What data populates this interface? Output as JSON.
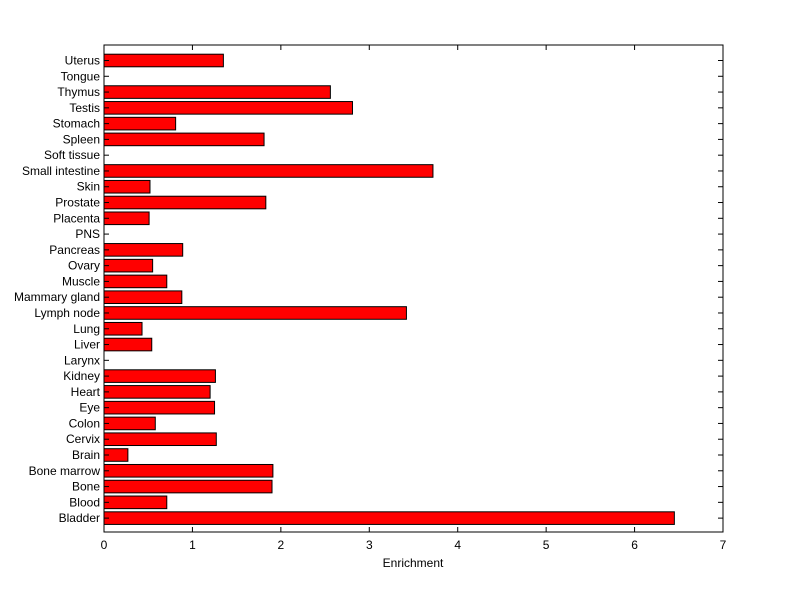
{
  "chart_data": {
    "type": "bar",
    "orientation": "horizontal",
    "title": "",
    "xlabel": "Enrichment",
    "ylabel": "",
    "xlim": [
      0,
      7
    ],
    "xticks": [
      0,
      1,
      2,
      3,
      4,
      5,
      6,
      7
    ],
    "grid": false,
    "bar_color": "#ff0000",
    "bar_edge_color": "#000000",
    "categories": [
      "Uterus",
      "Tongue",
      "Thymus",
      "Testis",
      "Stomach",
      "Spleen",
      "Soft tissue",
      "Small intestine",
      "Skin",
      "Prostate",
      "Placenta",
      "PNS",
      "Pancreas",
      "Ovary",
      "Muscle",
      "Mammary gland",
      "Lymph node",
      "Lung",
      "Liver",
      "Larynx",
      "Kidney",
      "Heart",
      "Eye",
      "Colon",
      "Cervix",
      "Brain",
      "Bone marrow",
      "Bone",
      "Blood",
      "Bladder"
    ],
    "values": [
      1.35,
      0,
      2.56,
      2.81,
      0.81,
      1.81,
      0,
      3.72,
      0.52,
      1.83,
      0.51,
      0,
      0.89,
      0.55,
      0.71,
      0.88,
      3.42,
      0.43,
      0.54,
      0,
      1.26,
      1.2,
      1.25,
      0.58,
      1.27,
      0.27,
      1.91,
      1.9,
      0.71,
      6.45
    ]
  }
}
